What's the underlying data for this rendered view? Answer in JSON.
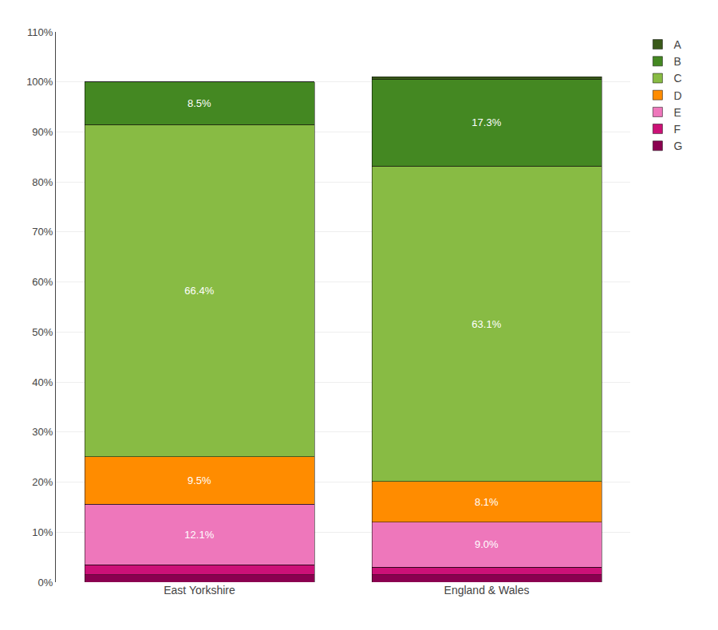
{
  "chart_data": {
    "type": "bar",
    "stacked": true,
    "categories": [
      "East Yorkshire",
      "England & Wales"
    ],
    "series": [
      {
        "name": "G",
        "color": "#8B0050",
        "values": [
          1.5,
          1.5
        ]
      },
      {
        "name": "F",
        "color": "#CC1177",
        "values": [
          2.0,
          1.5
        ]
      },
      {
        "name": "E",
        "color": "#EE77BB",
        "values": [
          12.1,
          9.0
        ],
        "value_labels": [
          "12.1%",
          "9.0%"
        ]
      },
      {
        "name": "D",
        "color": "#FF8C00",
        "values": [
          9.5,
          8.1
        ],
        "value_labels": [
          "9.5%",
          "8.1%"
        ]
      },
      {
        "name": "C",
        "color": "#88BB44",
        "values": [
          66.4,
          63.1
        ],
        "value_labels": [
          "66.4%",
          "63.1%"
        ]
      },
      {
        "name": "B",
        "color": "#448822",
        "values": [
          8.5,
          17.3
        ],
        "value_labels": [
          "8.5%",
          "17.3%"
        ]
      },
      {
        "name": "A",
        "color": "#3A5A1A",
        "values": [
          0.0,
          0.5
        ]
      }
    ],
    "ylim": [
      0,
      110
    ],
    "yticks": [
      {
        "value": 0,
        "label": "0%"
      },
      {
        "value": 10,
        "label": "10%"
      },
      {
        "value": 20,
        "label": "20%"
      },
      {
        "value": 30,
        "label": "30%"
      },
      {
        "value": 40,
        "label": "40%"
      },
      {
        "value": 50,
        "label": "50%"
      },
      {
        "value": 60,
        "label": "60%"
      },
      {
        "value": 70,
        "label": "70%"
      },
      {
        "value": 80,
        "label": "80%"
      },
      {
        "value": 90,
        "label": "90%"
      },
      {
        "value": 100,
        "label": "100%"
      },
      {
        "value": 110,
        "label": "110%"
      }
    ],
    "grid": true,
    "legend": "upper right"
  }
}
